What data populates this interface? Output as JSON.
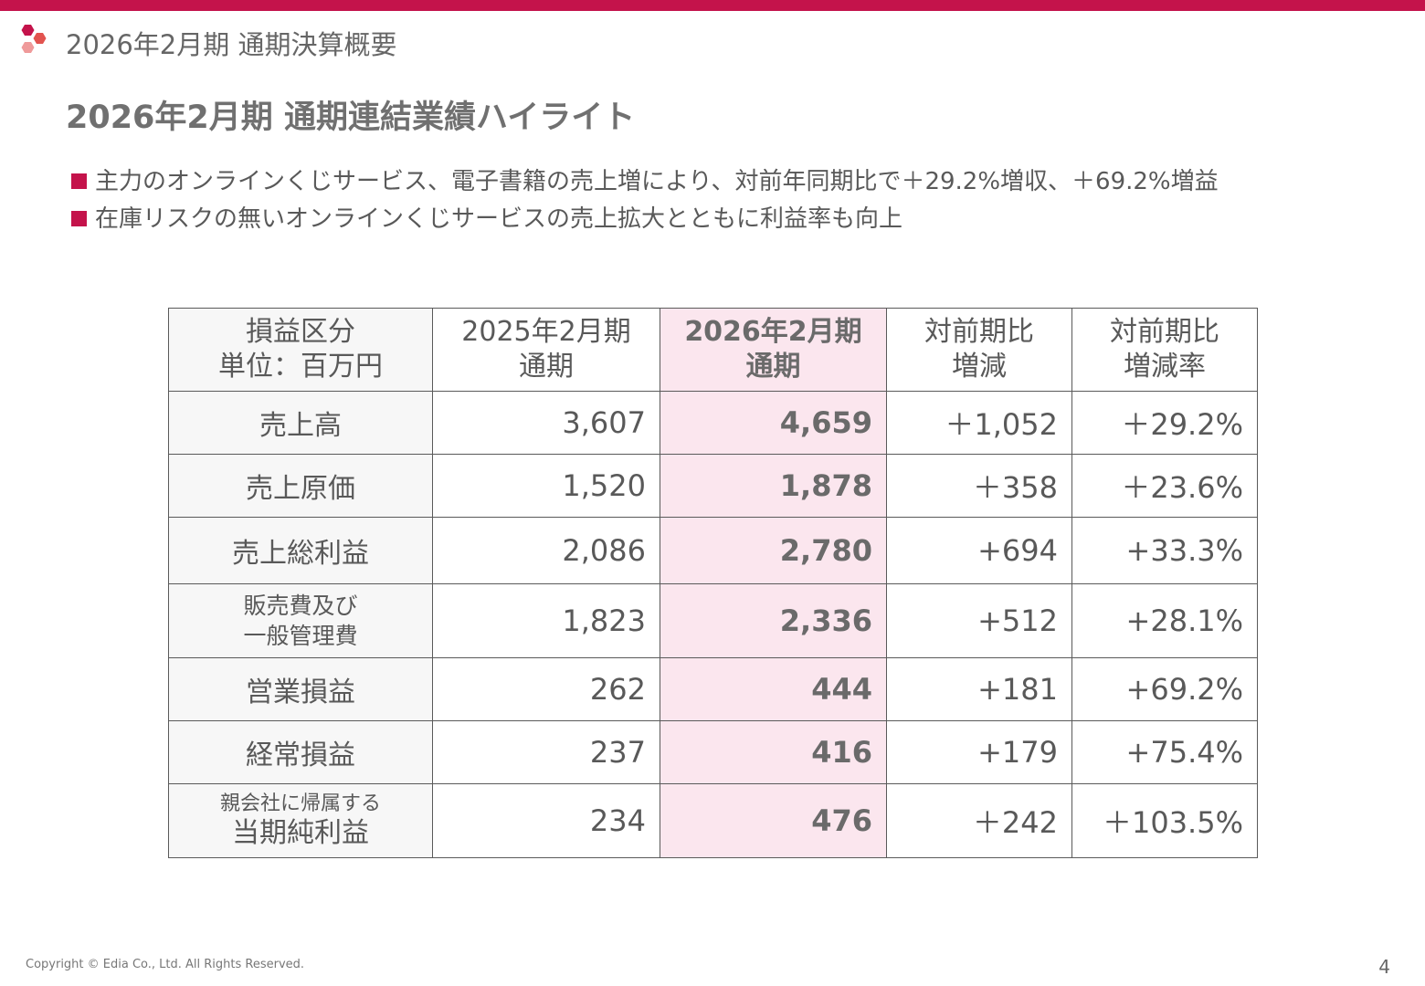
{
  "header": {
    "title": "2026年2月期 通期決算概要"
  },
  "slide": {
    "title": "2026年2月期 通期連結業績ハイライト",
    "bullets": [
      "主力のオンラインくじサービス、電子書籍の売上増により、対前年同期比で＋29.2%増収、＋69.2%増益",
      "在庫リスクの無いオンラインくじサービスの売上拡大とともに利益率も向上"
    ]
  },
  "table": {
    "headers": [
      [
        "損益区分",
        "単位：百万円"
      ],
      [
        "2025年2月期",
        "通期"
      ],
      [
        "2026年2月期",
        "通期"
      ],
      [
        "対前期比",
        "増減"
      ],
      [
        "対前期比",
        "増減率"
      ]
    ],
    "rows": [
      {
        "label": [
          "売上高"
        ],
        "prev": "3,607",
        "curr": "4,659",
        "diff": "＋1,052",
        "rate": "＋29.2%"
      },
      {
        "label": [
          "売上原価"
        ],
        "prev": "1,520",
        "curr": "1,878",
        "diff": "＋358",
        "rate": "＋23.6%"
      },
      {
        "label": [
          "売上総利益"
        ],
        "prev": "2,086",
        "curr": "2,780",
        "diff": "+694",
        "rate": "+33.3%"
      },
      {
        "label": [
          "販売費及び",
          "一般管理費"
        ],
        "prev": "1,823",
        "curr": "2,336",
        "diff": "+512",
        "rate": "+28.1%"
      },
      {
        "label": [
          "営業損益"
        ],
        "prev": "262",
        "curr": "444",
        "diff": "+181",
        "rate": "+69.2%"
      },
      {
        "label": [
          "経常損益"
        ],
        "prev": "237",
        "curr": "416",
        "diff": "+179",
        "rate": "+75.4%"
      },
      {
        "label": [
          "親会社に帰属する",
          "当期純利益"
        ],
        "prev": "234",
        "curr": "476",
        "diff": "＋242",
        "rate": "＋103.5%"
      }
    ]
  },
  "footer": {
    "copyright": "Copyright © Edia Co., Ltd. All Rights Reserved.",
    "page": "4"
  },
  "colors": {
    "accent": "#c4134b",
    "highlight_column": "#fbe6ee",
    "label_column": "#f7f7f7"
  }
}
